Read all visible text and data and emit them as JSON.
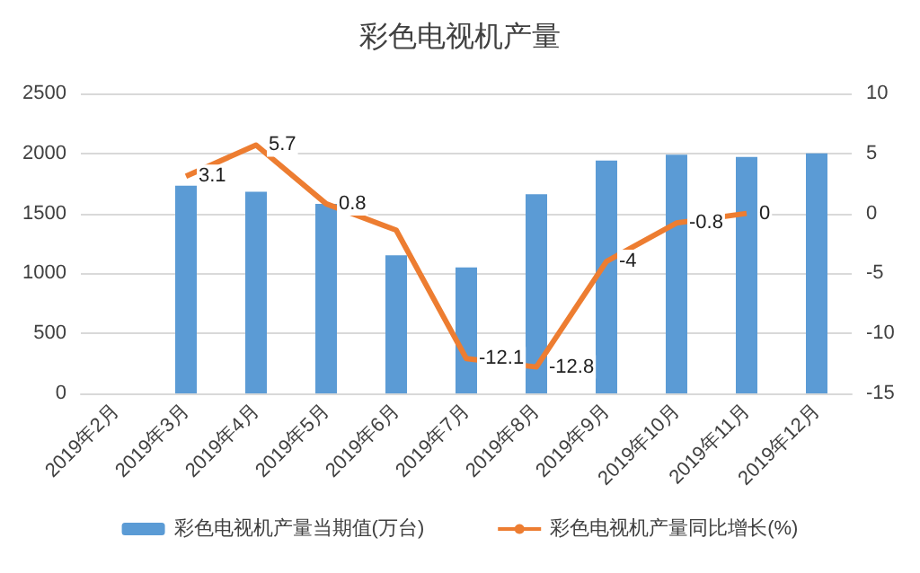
{
  "chart_data": {
    "type": "bar",
    "title": "彩色电视机产量",
    "categories": [
      "2019年2月",
      "2019年3月",
      "2019年4月",
      "2019年5月",
      "2019年6月",
      "2019年7月",
      "2019年8月",
      "2019年9月",
      "2019年10月",
      "2019年11月",
      "2019年12月"
    ],
    "series": [
      {
        "name": "彩色电视机产量当期值(万台)",
        "color": "#5b9bd5",
        "values": [
          null,
          1730,
          1680,
          1580,
          1150,
          1050,
          1660,
          1940,
          1990,
          1970,
          2000
        ]
      },
      {
        "name": "彩色电视机产量同比增长(%)",
        "type": "line",
        "axis": "y2",
        "color": "#ed7d31",
        "values": [
          null,
          3.1,
          5.7,
          0.8,
          -1.4,
          -12.1,
          -12.8,
          -4,
          -0.8,
          0,
          null
        ],
        "value_labels": [
          null,
          "3.1",
          "5.7",
          "0.8",
          null,
          "-12.1",
          "-12.8",
          "-4",
          "-0.8",
          "0",
          null
        ]
      }
    ],
    "ylim": [
      0,
      2500
    ],
    "yticks": [
      0,
      500,
      1000,
      1500,
      2000,
      2500
    ],
    "y2lim": [
      -15,
      10
    ],
    "y2ticks": [
      -15,
      -10,
      -5,
      0,
      5,
      10
    ],
    "grid": "y",
    "legend": "bottom",
    "marker": "none"
  }
}
